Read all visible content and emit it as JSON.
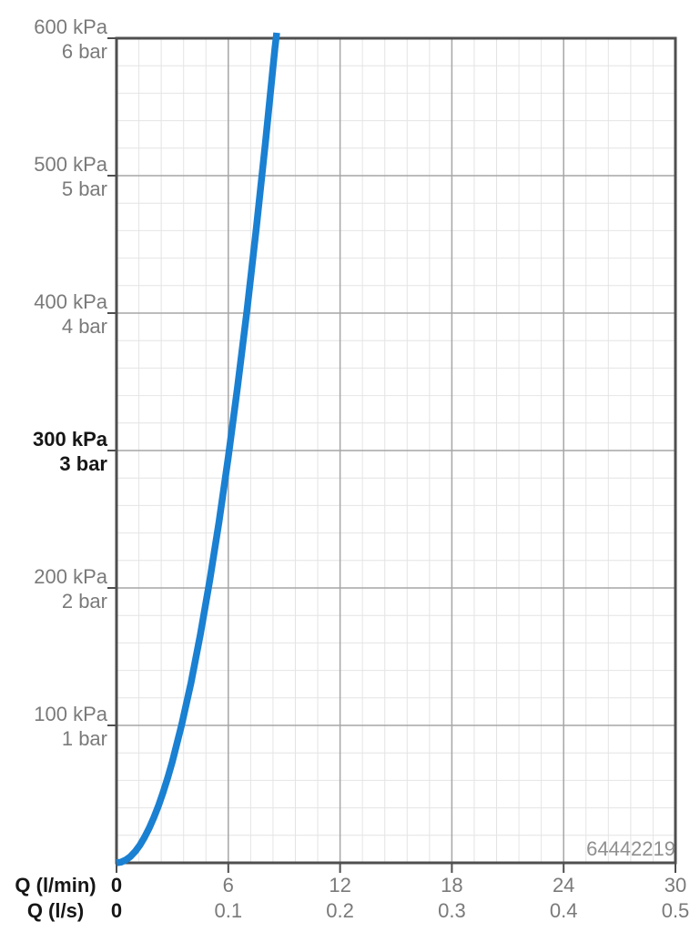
{
  "product_code": "64442219",
  "colors": {
    "curve": "#1a80d2",
    "frame": "#4f4f4f",
    "grid_major": "#a6a6a6",
    "grid_minor": "#e4e4e4",
    "label_gray": "#7a7a7a",
    "label_black": "#161616",
    "code_gray": "#8f8f8f",
    "background": "#ffffff"
  },
  "chart_data": {
    "type": "line",
    "title": "",
    "x_axis": {
      "rows": [
        {
          "label": "Q (l/min)",
          "unit": "l/min",
          "ticks": [
            "0",
            "6",
            "12",
            "18",
            "24",
            "30"
          ]
        },
        {
          "label": "Q (l/s)",
          "unit": "l/s",
          "ticks": [
            "0",
            "0.1",
            "0.2",
            "0.3",
            "0.4",
            "0.5"
          ]
        }
      ],
      "range_lmin": [
        0,
        30
      ],
      "major_step_lmin": 6,
      "minors_per_major": 5
    },
    "y_axis": {
      "ticks": [
        {
          "kpa": "600 kPa",
          "bar": "6 bar",
          "value": 600,
          "bold": false
        },
        {
          "kpa": "500 kPa",
          "bar": "5 bar",
          "value": 500,
          "bold": false
        },
        {
          "kpa": "400 kPa",
          "bar": "4 bar",
          "value": 400,
          "bold": false
        },
        {
          "kpa": "300 kPa",
          "bar": "3 bar",
          "value": 300,
          "bold": true
        },
        {
          "kpa": "200 kPa",
          "bar": "2 bar",
          "value": 200,
          "bold": false
        },
        {
          "kpa": "100 kPa",
          "bar": "1 bar",
          "value": 100,
          "bold": false
        }
      ],
      "range_kpa": [
        0,
        600
      ],
      "major_step_kpa": 100,
      "minors_per_major": 5
    },
    "grid": {
      "minor": true,
      "major": true
    },
    "legend": "none",
    "series": [
      {
        "name": "pressure-drop-curve",
        "color": "#1a80d2",
        "points_q_lmin_vs_kpa": [
          [
            0,
            0
          ],
          [
            0.25,
            0.5
          ],
          [
            0.5,
            2.1
          ],
          [
            0.75,
            4.6
          ],
          [
            1,
            8.2
          ],
          [
            1.25,
            12.8
          ],
          [
            1.5,
            18.5
          ],
          [
            1.75,
            25.1
          ],
          [
            2,
            32.8
          ],
          [
            2.25,
            41.5
          ],
          [
            2.5,
            51.3
          ],
          [
            2.75,
            62.0
          ],
          [
            3,
            73.8
          ],
          [
            3.5,
            100.5
          ],
          [
            4,
            131.2
          ],
          [
            4.5,
            166.1
          ],
          [
            5,
            205.0
          ],
          [
            5.5,
            248.1
          ],
          [
            6,
            295.2
          ],
          [
            6.5,
            346.5
          ],
          [
            7,
            401.8
          ],
          [
            7.5,
            461.3
          ],
          [
            8,
            524.8
          ],
          [
            8.5,
            592.5
          ],
          [
            8.6,
            604.0
          ]
        ]
      }
    ]
  }
}
